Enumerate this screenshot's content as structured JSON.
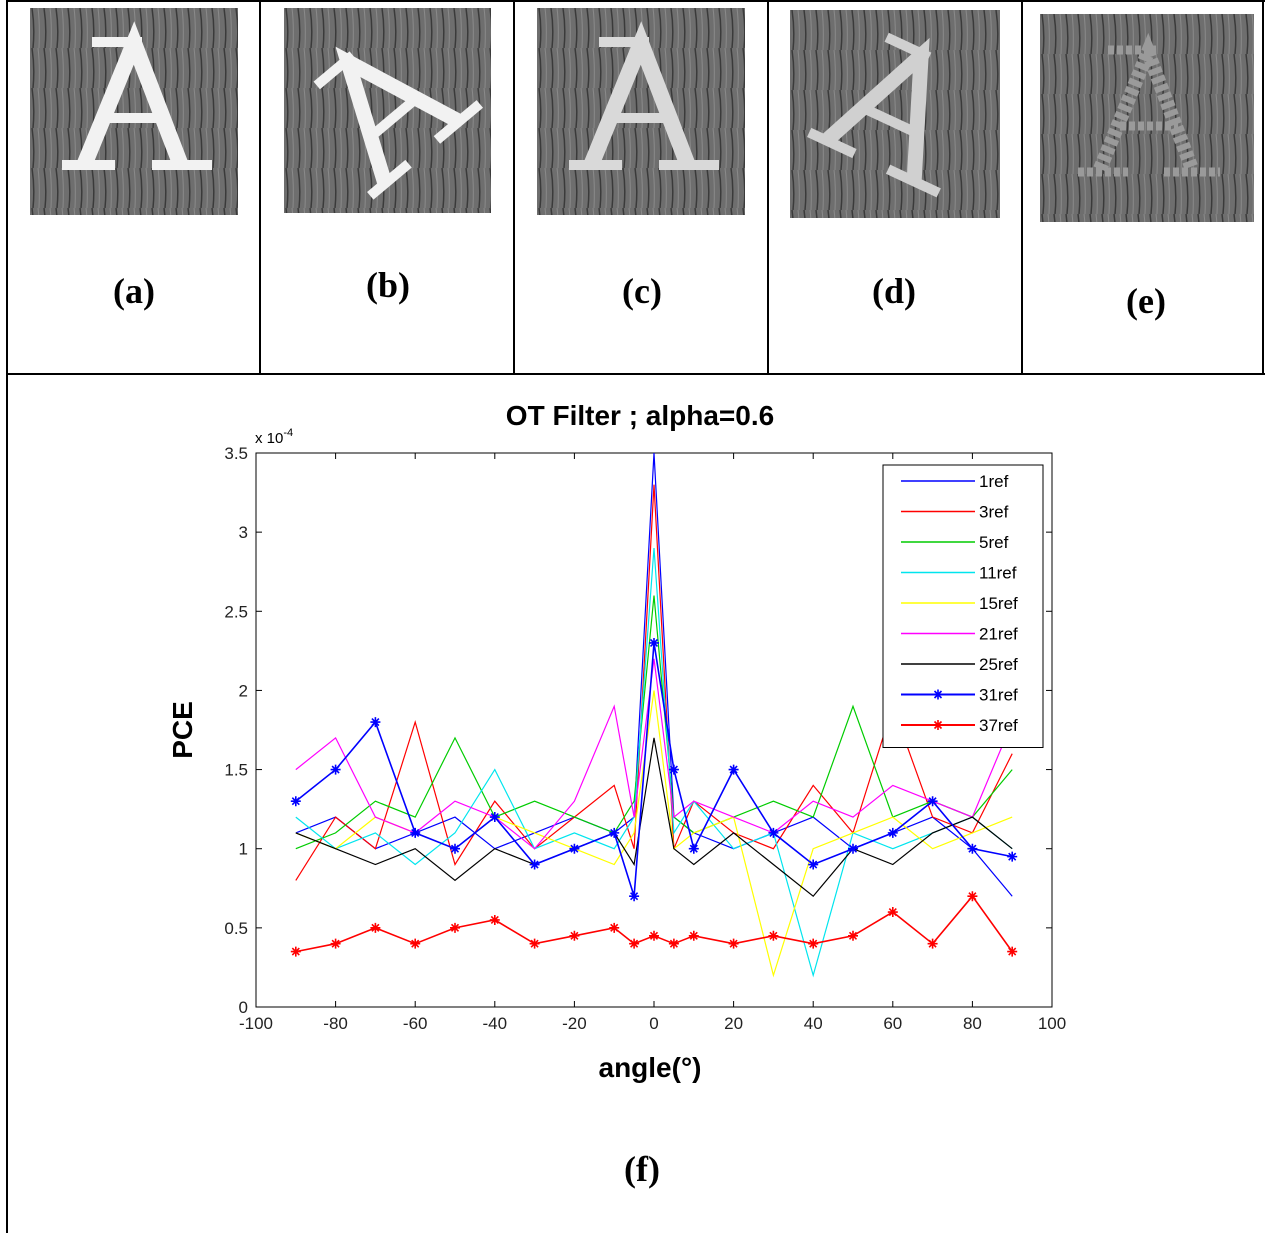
{
  "panels": [
    {
      "caption": "(a)"
    },
    {
      "caption": "(b)"
    },
    {
      "caption": "(c)"
    },
    {
      "caption": "(d)"
    },
    {
      "caption": "(e)"
    }
  ],
  "figure_caption": "(f)",
  "colors": {
    "1ref": "#0000ff",
    "3ref": "#ff0000",
    "5ref": "#00cc00",
    "11ref": "#00e5ee",
    "15ref": "#ffff00",
    "21ref": "#ff00ff",
    "25ref": "#000000",
    "31ref": "#0000ff",
    "37ref": "#ff0000"
  },
  "chart_data": {
    "type": "line",
    "title": "OT Filter ; alpha=0.6",
    "xlabel": "angle(°)",
    "ylabel": "PCE",
    "y_multiplier": "x 10",
    "y_exponent": "-4",
    "xlim": [
      -100,
      100
    ],
    "ylim": [
      0,
      3.5
    ],
    "x_ticks": [
      "-100",
      "-80",
      "-60",
      "-40",
      "-20",
      "0",
      "20",
      "40",
      "60",
      "80",
      "100"
    ],
    "y_ticks": [
      "0",
      "0.5",
      "1",
      "1.5",
      "2",
      "2.5",
      "3",
      "3.5"
    ],
    "legend_position": "top-right",
    "x": [
      -90,
      -80,
      -70,
      -60,
      -50,
      -40,
      -30,
      -20,
      -10,
      -5,
      0,
      5,
      10,
      20,
      30,
      40,
      50,
      60,
      70,
      80,
      90
    ],
    "series": [
      {
        "name": "1ref",
        "marker": "none",
        "values": [
          1.1,
          1.2,
          1.0,
          1.1,
          1.2,
          1.0,
          1.1,
          1.2,
          1.1,
          1.2,
          3.5,
          1.2,
          1.1,
          1.0,
          1.1,
          1.2,
          1.0,
          1.1,
          1.2,
          1.0,
          0.7
        ]
      },
      {
        "name": "3ref",
        "marker": "none",
        "values": [
          0.8,
          1.2,
          1.0,
          1.8,
          0.9,
          1.3,
          1.0,
          1.2,
          1.4,
          1.0,
          3.3,
          1.0,
          1.3,
          1.1,
          1.0,
          1.4,
          1.1,
          1.9,
          1.2,
          1.1,
          1.6
        ]
      },
      {
        "name": "5ref",
        "marker": "none",
        "values": [
          1.0,
          1.1,
          1.3,
          1.2,
          1.7,
          1.2,
          1.3,
          1.2,
          1.1,
          1.3,
          2.6,
          1.2,
          1.1,
          1.2,
          1.3,
          1.2,
          1.9,
          1.2,
          1.3,
          1.2,
          1.5
        ]
      },
      {
        "name": "11ref",
        "marker": "none",
        "values": [
          1.2,
          1.0,
          1.1,
          0.9,
          1.1,
          1.5,
          1.0,
          1.1,
          1.0,
          1.2,
          2.9,
          1.1,
          1.3,
          1.0,
          1.1,
          0.2,
          1.1,
          1.0,
          1.1,
          1.2,
          1.0
        ]
      },
      {
        "name": "15ref",
        "marker": "none",
        "values": [
          1.1,
          1.0,
          1.2,
          1.1,
          1.0,
          1.2,
          1.1,
          1.0,
          0.9,
          1.1,
          2.0,
          1.0,
          1.1,
          1.2,
          0.2,
          1.0,
          1.1,
          1.2,
          1.0,
          1.1,
          1.2
        ]
      },
      {
        "name": "21ref",
        "marker": "none",
        "values": [
          1.5,
          1.7,
          1.2,
          1.1,
          1.3,
          1.2,
          1.0,
          1.3,
          1.9,
          1.2,
          2.2,
          1.2,
          1.3,
          1.2,
          1.1,
          1.3,
          1.2,
          1.4,
          1.3,
          1.2,
          1.8
        ]
      },
      {
        "name": "25ref",
        "marker": "none",
        "values": [
          1.1,
          1.0,
          0.9,
          1.0,
          0.8,
          1.0,
          0.9,
          1.0,
          1.1,
          0.9,
          1.7,
          1.0,
          0.9,
          1.1,
          0.9,
          0.7,
          1.0,
          0.9,
          1.1,
          1.2,
          1.0
        ]
      },
      {
        "name": "31ref",
        "marker": "star",
        "values": [
          1.3,
          1.5,
          1.8,
          1.1,
          1.0,
          1.2,
          0.9,
          1.0,
          1.1,
          0.7,
          2.3,
          1.5,
          1.0,
          1.5,
          1.1,
          0.9,
          1.0,
          1.1,
          1.3,
          1.0,
          0.95
        ]
      },
      {
        "name": "37ref",
        "marker": "star",
        "values": [
          0.35,
          0.4,
          0.5,
          0.4,
          0.5,
          0.55,
          0.4,
          0.45,
          0.5,
          0.4,
          0.45,
          0.4,
          0.45,
          0.4,
          0.45,
          0.4,
          0.45,
          0.6,
          0.4,
          0.7,
          0.35
        ]
      }
    ]
  }
}
